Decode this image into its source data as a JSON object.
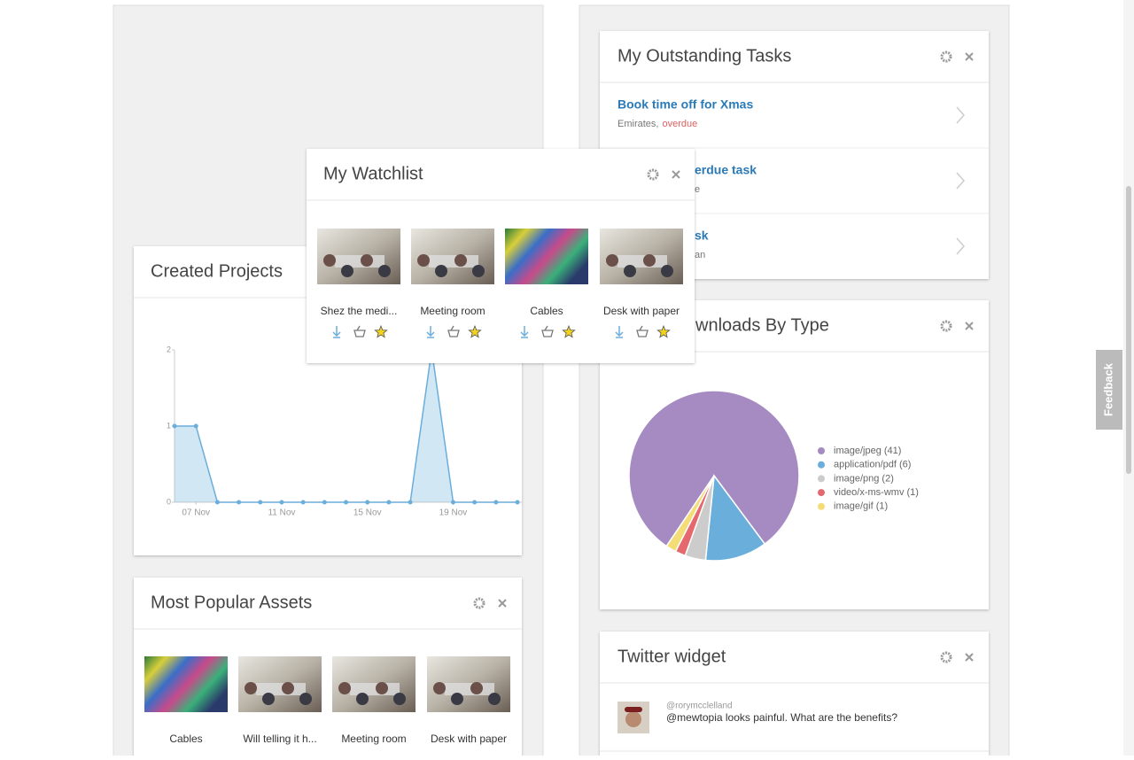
{
  "watchlist": {
    "title": "My Watchlist",
    "items": [
      "Shez the medi...",
      "Meeting room",
      "Cables",
      "Desk with paper"
    ]
  },
  "tasks": {
    "title": "My Outstanding Tasks",
    "items": [
      {
        "title": "Book time off for Xmas",
        "meta": "Emirates,",
        "status": "overdue"
      },
      {
        "title": "erdue task",
        "meta": "e"
      },
      {
        "title": "sk",
        "meta": "an"
      }
    ]
  },
  "chart_data": [
    {
      "type": "line",
      "title": "Created Projects",
      "categories": [
        null,
        "07 Nov",
        null,
        null,
        null,
        "11 Nov",
        null,
        null,
        null,
        "15 Nov",
        null,
        null,
        null,
        "19 Nov",
        null,
        null,
        null
      ],
      "values": [
        1,
        1,
        0,
        0,
        0,
        0,
        0,
        0,
        0,
        0,
        0,
        0,
        2,
        0,
        0,
        0,
        0
      ],
      "ylim": [
        0,
        2
      ],
      "yticks": [
        0,
        1,
        2
      ],
      "color": "#6aaedb",
      "grid": false
    },
    {
      "type": "pie",
      "title": "wnloads By Type",
      "labels": [
        "image/jpeg (41)",
        "application/pdf (6)",
        "image/png (2)",
        "video/x-ms-wmv (1)",
        "image/gif (1)"
      ],
      "values": [
        41,
        6,
        2,
        1,
        1
      ],
      "colors": [
        "#a58bc2",
        "#6aaedb",
        "#cccccc",
        "#e5686e",
        "#f4dc77"
      ]
    }
  ],
  "popular_assets": {
    "title": "Most Popular Assets",
    "items": [
      "Cables",
      "Will telling it h...",
      "Meeting room",
      "Desk with paper"
    ]
  },
  "twitter": {
    "title": "Twitter widget",
    "handle": "@rorymcclelland",
    "tweet": "@mewtopia looks painful. What are the benefits?"
  },
  "feedback": "Feedback"
}
